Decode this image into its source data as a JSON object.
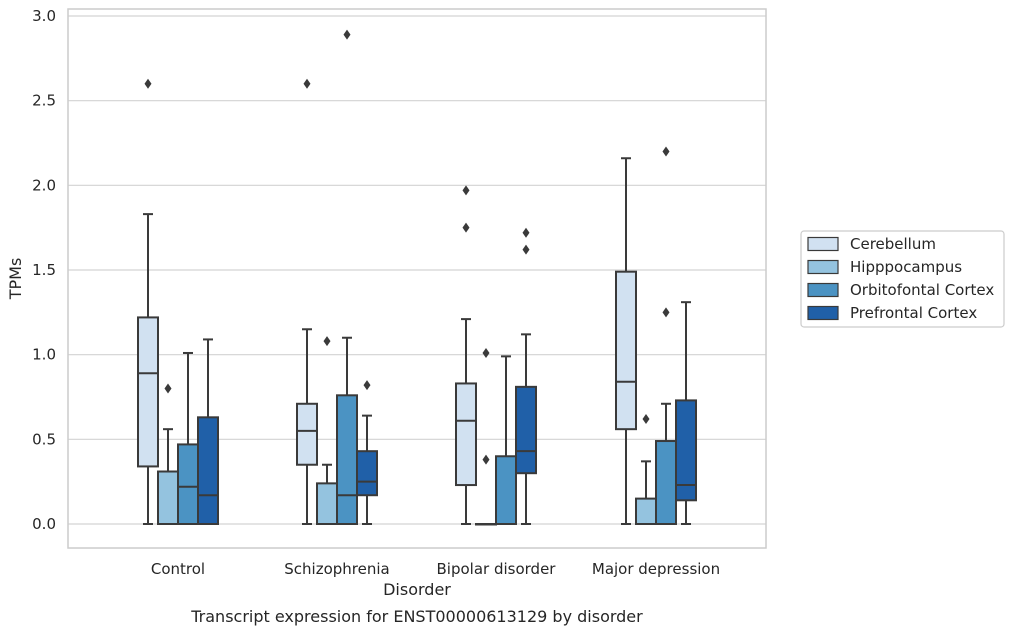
{
  "colors": {
    "Cerebellum": "#d1e1f1",
    "Hipppocampus": "#94c3df",
    "Orbitofontal Cortex": "#4b93c3",
    "Prefrontal Cortex": "#2060a8",
    "line": "#3a3a3a",
    "grid": "#d3d3d3",
    "frame": "#cccccc"
  },
  "chart_data": {
    "type": "box",
    "caption": "Transcript expression for ENST00000613129 by disorder",
    "xlabel": "Disorder",
    "ylabel": "TPMs",
    "ylim": [
      -0.14,
      3.04
    ],
    "yticks": [
      0.0,
      0.5,
      1.0,
      1.5,
      2.0,
      2.5,
      3.0
    ],
    "ytick_labels": [
      "0.0",
      "0.5",
      "1.0",
      "1.5",
      "2.0",
      "2.5",
      "3.0"
    ],
    "grid": true,
    "legend_position": "right",
    "categories": [
      "Control",
      "Schizophrenia",
      "Bipolar disorder",
      "Major depression"
    ],
    "series": [
      {
        "name": "Cerebellum",
        "boxes": [
          {
            "whislo": 0.0,
            "q1": 0.34,
            "med": 0.89,
            "q3": 1.22,
            "whishi": 1.83,
            "fliers": [
              2.6
            ]
          },
          {
            "whislo": 0.0,
            "q1": 0.35,
            "med": 0.55,
            "q3": 0.71,
            "whishi": 1.15,
            "fliers": [
              2.6
            ]
          },
          {
            "whislo": 0.0,
            "q1": 0.23,
            "med": 0.61,
            "q3": 0.83,
            "whishi": 1.21,
            "fliers": [
              1.75,
              1.97
            ]
          },
          {
            "whislo": 0.0,
            "q1": 0.56,
            "med": 0.84,
            "q3": 1.49,
            "whishi": 2.16,
            "fliers": []
          }
        ]
      },
      {
        "name": "Hipppocampus",
        "boxes": [
          {
            "whislo": 0.0,
            "q1": 0.0,
            "med": 0.0,
            "q3": 0.31,
            "whishi": 0.56,
            "fliers": [
              0.8
            ]
          },
          {
            "whislo": 0.0,
            "q1": 0.0,
            "med": 0.0,
            "q3": 0.24,
            "whishi": 0.35,
            "fliers": [
              1.08
            ]
          },
          {
            "whislo": 0.0,
            "q1": 0.0,
            "med": 0.0,
            "q3": 0.0,
            "whishi": 0.0,
            "fliers": [
              0.38,
              1.01
            ]
          },
          {
            "whislo": 0.0,
            "q1": 0.0,
            "med": 0.0,
            "q3": 0.15,
            "whishi": 0.37,
            "fliers": [
              0.62
            ]
          }
        ]
      },
      {
        "name": "Orbitofontal Cortex",
        "boxes": [
          {
            "whislo": 0.0,
            "q1": 0.0,
            "med": 0.22,
            "q3": 0.47,
            "whishi": 1.01,
            "fliers": []
          },
          {
            "whislo": 0.0,
            "q1": 0.0,
            "med": 0.17,
            "q3": 0.76,
            "whishi": 1.1,
            "fliers": [
              2.89
            ]
          },
          {
            "whislo": 0.0,
            "q1": 0.0,
            "med": 0.0,
            "q3": 0.4,
            "whishi": 0.99,
            "fliers": []
          },
          {
            "whislo": 0.0,
            "q1": 0.0,
            "med": 0.0,
            "q3": 0.49,
            "whishi": 0.71,
            "fliers": [
              1.25,
              2.2
            ]
          }
        ]
      },
      {
        "name": "Prefrontal Cortex",
        "boxes": [
          {
            "whislo": 0.0,
            "q1": 0.0,
            "med": 0.17,
            "q3": 0.63,
            "whishi": 1.09,
            "fliers": []
          },
          {
            "whislo": 0.0,
            "q1": 0.17,
            "med": 0.25,
            "q3": 0.43,
            "whishi": 0.64,
            "fliers": [
              0.82
            ]
          },
          {
            "whislo": 0.0,
            "q1": 0.3,
            "med": 0.43,
            "q3": 0.81,
            "whishi": 1.12,
            "fliers": [
              1.62,
              1.72
            ]
          },
          {
            "whislo": 0.0,
            "q1": 0.14,
            "med": 0.23,
            "q3": 0.73,
            "whishi": 1.31,
            "fliers": []
          }
        ]
      }
    ]
  }
}
